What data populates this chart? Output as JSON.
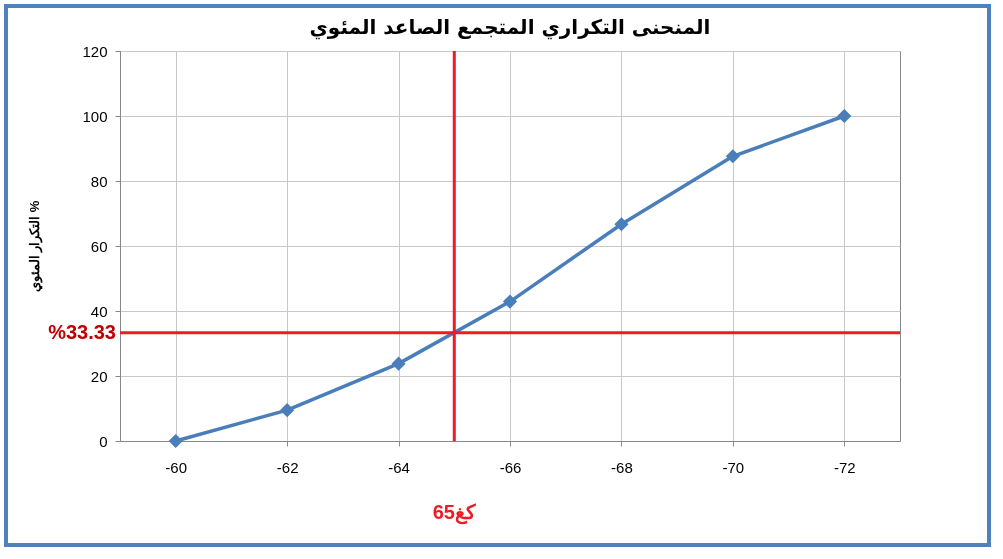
{
  "chart_data": {
    "type": "line",
    "title": "المنحنى التكراري المتجمع الصاعد المئوي",
    "ylabel": "التكرار المئوي %",
    "x": [
      -60,
      -62,
      -64,
      -66,
      -68,
      -70,
      -72
    ],
    "series": [
      {
        "color": "#4a7ebb",
        "values": [
          0,
          9.5,
          23.8,
          42.9,
          66.7,
          87.6,
          100
        ]
      }
    ],
    "xlim": [
      -59,
      -73
    ],
    "xticks": [
      -60,
      -62,
      -64,
      -66,
      -68,
      -70,
      -72
    ],
    "ylim": [
      0,
      120
    ],
    "yticks": [
      0,
      20,
      40,
      60,
      80,
      100,
      120
    ],
    "ref_lines": [
      {
        "axis": "y",
        "value": 33.33,
        "label": "%33.33",
        "color": "#ed1c24"
      },
      {
        "axis": "x",
        "value": -65,
        "label": "65كغ",
        "color": "#ed1c24"
      }
    ],
    "grid": true,
    "marker": "diamond"
  }
}
